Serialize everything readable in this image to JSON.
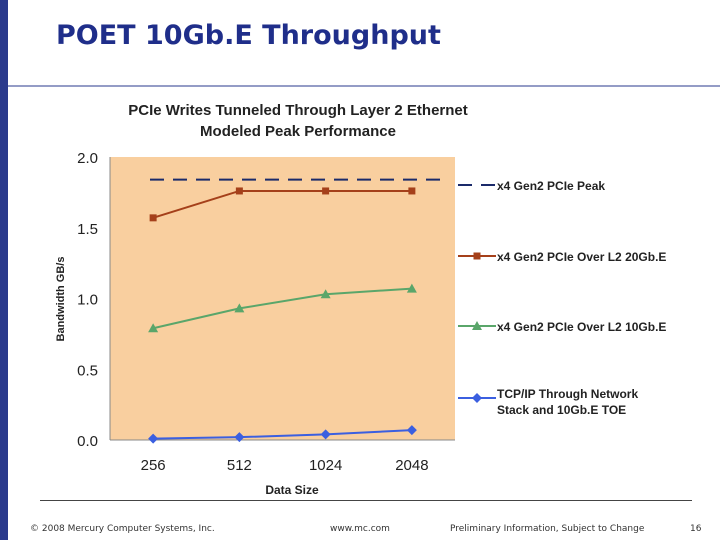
{
  "slide": {
    "title": "POET 10Gb.E Throughput",
    "accent_color": "#2a3a8c",
    "title_color": "#1f2e8a"
  },
  "footer": {
    "copyright": "© 2008 Mercury Computer Systems, Inc.",
    "website": "www.mc.com",
    "note": "Preliminary Information, Subject to Change",
    "page_number": "16"
  },
  "chart_data": {
    "type": "line",
    "title_lines": [
      "PCIe Writes Tunneled Through Layer 2 Ethernet",
      "Modeled Peak Performance"
    ],
    "xlabel": "Data Size",
    "ylabel": "Bandwidth GB/s",
    "categories": [
      "256",
      "512",
      "1024",
      "2048"
    ],
    "ylim": [
      0,
      2.0
    ],
    "yticks": [
      "0.0",
      "0.5",
      "1.0",
      "1.5",
      "2.0"
    ],
    "plot_background": "#f9cf9f",
    "series": [
      {
        "name": "x4 Gen2 PCIe Peak",
        "values": [
          1.84,
          1.84,
          1.84,
          1.84
        ],
        "color": "#1a2a6a",
        "style": "dashed",
        "marker": "none"
      },
      {
        "name": "x4 Gen2 PCIe Over L2 20Gb.E",
        "values": [
          1.57,
          1.76,
          1.76,
          1.76
        ],
        "color": "#a5401a",
        "style": "solid",
        "marker": "square"
      },
      {
        "name": "x4 Gen2 PCIe Over L2 10Gb.E",
        "values": [
          0.79,
          0.93,
          1.03,
          1.07
        ],
        "color": "#5aa66a",
        "style": "solid",
        "marker": "triangle"
      },
      {
        "name": "TCP/IP Through Network Stack and 10Gb.E TOE",
        "legend_lines": [
          "TCP/IP Through Network",
          "Stack and 10Gb.E TOE"
        ],
        "values": [
          0.01,
          0.02,
          0.04,
          0.07
        ],
        "color": "#3b5fe0",
        "style": "solid",
        "marker": "diamond"
      }
    ]
  }
}
